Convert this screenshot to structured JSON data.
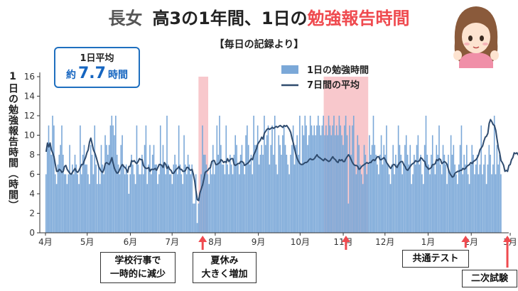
{
  "title": {
    "part_a": "長女",
    "part_b": "高3の1年間、1日の",
    "part_c": "勉強報告時間"
  },
  "subtitle": "【毎日の記録より】",
  "average_box": {
    "label": "1日平均",
    "prefix": "約",
    "value": "7.7",
    "unit": "時間"
  },
  "ylabel": "1日の勉強報告時間（時間）",
  "legend": {
    "bar": "1日の勉強時間",
    "line": "7日間の平均"
  },
  "annotations": [
    {
      "line1": "学校行事で",
      "line2": "一時的に減少"
    },
    {
      "line1": "夏休み",
      "line2": "大きく増加"
    },
    {
      "line1": "共通テスト",
      "line2": ""
    },
    {
      "line1": "二次試験",
      "line2": ""
    }
  ],
  "colors": {
    "bar": "#7ba8d8",
    "line": "#2f4b6e",
    "highlight": "#f8c8cc",
    "arrow": "#ef4a4f",
    "title_accent": "#ef4a4f",
    "avg_value": "#1565c0"
  },
  "avatar": {
    "icon": "girl-avatar-icon"
  },
  "chart_data": {
    "type": "bar",
    "series_names": {
      "bars": "1日の勉強時間",
      "line": "7日間の平均"
    },
    "x_tick_labels": [
      "4月",
      "5月",
      "6月",
      "7月",
      "8月",
      "9月",
      "10月",
      "11月",
      "12月",
      "1月",
      "2月",
      "3月"
    ],
    "y_ticks": [
      0,
      2,
      4,
      6,
      8,
      10,
      12,
      14,
      16
    ],
    "ylim": [
      0,
      16
    ],
    "x_range_days": [
      0,
      335
    ],
    "highlight_ranges_days": [
      [
        112,
        119
      ],
      [
        202,
        234
      ]
    ],
    "bar_values": [
      6,
      9,
      11,
      9,
      8,
      12,
      11,
      6,
      5,
      7,
      8,
      9,
      11,
      8,
      6,
      6,
      5,
      6,
      9,
      6,
      7,
      6,
      8,
      7,
      6,
      5,
      11,
      6,
      8,
      9,
      7,
      7,
      6,
      5,
      9,
      8,
      6,
      11,
      7,
      5,
      7,
      5,
      9,
      7,
      6,
      10,
      9,
      8,
      9,
      11,
      12,
      11,
      10,
      12,
      8,
      7,
      6,
      9,
      10,
      7,
      6,
      7,
      6,
      4,
      6,
      8,
      7,
      6,
      5,
      11,
      7,
      6,
      6,
      8,
      6,
      9,
      11,
      5,
      7,
      9,
      6,
      8,
      9,
      7,
      7,
      5,
      6,
      11,
      7,
      9,
      7,
      6,
      12,
      7,
      6,
      6,
      5,
      7,
      8,
      7,
      6,
      11,
      7,
      6,
      5,
      10,
      7,
      6,
      8,
      7,
      6,
      7,
      3,
      3,
      6,
      1,
      3,
      4,
      6,
      11,
      8,
      8,
      7,
      6,
      5,
      7,
      6,
      9,
      6,
      7,
      11,
      8,
      12,
      9,
      7,
      7,
      6,
      11,
      7,
      6,
      8,
      7,
      6,
      8,
      10,
      9,
      7,
      6,
      8,
      9,
      7,
      6,
      10,
      11,
      9,
      7,
      8,
      6,
      12,
      9,
      9,
      11,
      7,
      8,
      9,
      8,
      12,
      9,
      10,
      11,
      7,
      9,
      11,
      8,
      12,
      7,
      6,
      10,
      9,
      8,
      10,
      11,
      9,
      8,
      7,
      6,
      8,
      9,
      11,
      7,
      9,
      10,
      8,
      12,
      7,
      11,
      10,
      12,
      11,
      9,
      10,
      12,
      11,
      10,
      11,
      10,
      11,
      12,
      11,
      10,
      11,
      12,
      10,
      11,
      10,
      12,
      11,
      10,
      11,
      12,
      10,
      11,
      10,
      12,
      11,
      10,
      9,
      11,
      12,
      10,
      3,
      11,
      8,
      11,
      12,
      7,
      6,
      10,
      9,
      7,
      6,
      5,
      9,
      8,
      6,
      7,
      10,
      8,
      9,
      12,
      9,
      8,
      7,
      6,
      8,
      10,
      7,
      9,
      8,
      11,
      7,
      6,
      5,
      7,
      9,
      6,
      8,
      7,
      11,
      9,
      8,
      6,
      7,
      9,
      10,
      8,
      7,
      9,
      5,
      6,
      8,
      7,
      9,
      10,
      7,
      8,
      6,
      5,
      9,
      12,
      8,
      7,
      6,
      8,
      10,
      7,
      6,
      9,
      8,
      11,
      7,
      6,
      9,
      8,
      7,
      5,
      8,
      6,
      10,
      8,
      9,
      7,
      6,
      5,
      7,
      9,
      11,
      6,
      8,
      7,
      9,
      6,
      5,
      7,
      9,
      8,
      6,
      7,
      8,
      6,
      7,
      11,
      6,
      7,
      8,
      5,
      7,
      9,
      8,
      6,
      7,
      12,
      6,
      9,
      7,
      8,
      6
    ],
    "line_values": [
      8.3,
      9.2,
      8.8,
      9.2,
      8.5,
      8.2,
      7.8,
      7,
      6.3,
      6.3,
      6.5,
      6.4,
      6.2,
      6.3,
      6.8,
      6.9,
      6.5,
      6.3,
      6.1,
      6,
      6.2,
      6.4,
      6.6,
      6.3,
      6.2,
      6.4,
      6.7,
      7,
      7,
      7.4,
      7.7,
      8.2,
      8.5,
      9.3,
      9.7,
      9.1,
      8.5,
      8.2,
      7.8,
      7.3,
      6.8,
      6.5,
      6.3,
      6.2,
      6.5,
      7.1,
      7.2,
      7.1,
      7,
      7.3,
      7.7,
      7.1,
      6.6,
      6.3,
      6.1,
      6.2,
      6.5,
      6.8,
      7,
      6.8,
      6.7,
      6.5,
      6.2,
      6.8,
      6.8,
      7.4,
      7.3,
      7.4,
      7.2,
      7.1,
      7.3,
      7.6,
      7.5,
      7.5,
      6.9,
      6.7,
      6.6,
      6.6,
      6.7,
      6.3,
      6.5,
      6.5,
      6.5,
      6.6,
      6.4,
      6.7,
      7,
      7,
      6.9,
      6.7,
      7.2,
      7,
      6.6,
      6.8,
      6.5,
      6.4,
      6.1,
      6.1,
      6.3,
      6.5,
      6.6,
      6.8,
      6.5,
      6.5,
      6.3,
      6.3,
      6.4,
      6.7,
      6.7,
      6.5,
      6.4,
      6.5,
      6,
      5.3,
      4.3,
      3.4,
      3.3,
      4.1,
      4.5,
      4.9,
      5.5,
      6.2,
      6.3,
      6.4,
      6.6,
      6.7,
      7.3,
      7.4,
      7.4,
      7,
      7,
      7.1,
      7.2,
      7.5,
      7.4,
      7.2,
      7.3,
      7.2,
      7.6,
      7.3,
      7.5,
      7.6,
      7.6,
      7,
      6.9,
      7,
      7.1,
      7.1,
      7.3,
      7.3,
      7.2,
      6.9,
      7,
      7.1,
      7.2,
      7.4,
      7.6,
      7.5,
      8,
      8.3,
      8.6,
      9.1,
      9.3,
      9.5,
      9.8,
      9.6,
      10.2,
      10.4,
      10.6,
      10.7,
      10.6,
      10.7,
      10.8,
      10.7,
      10.8,
      10.9,
      10.8,
      10.9,
      11,
      10.9,
      10.8,
      11,
      10.9,
      11,
      10.8,
      10.6,
      10.3,
      9.7,
      9.2,
      8.6,
      8,
      7.6,
      7.3,
      7.1,
      7,
      7,
      7.1,
      7.2,
      7.2,
      7.3,
      7.5,
      7.6,
      7.5,
      7.5,
      7.6,
      7.8,
      8,
      7.8,
      7.7,
      7.6,
      7.5,
      7.4,
      7.6,
      7.5,
      7.4,
      7.3,
      7.4,
      7.6,
      7.8,
      7.6,
      7.5,
      7.3,
      7.2,
      7.5,
      7.4,
      7.5,
      7.3,
      7.3,
      7.6,
      7.8,
      8,
      7.8,
      7.5,
      7.2,
      7,
      6.9,
      6.9,
      6.8,
      6.5,
      6.6,
      6.8,
      6.9,
      7,
      7.1,
      7.2,
      7.1,
      7.2,
      7.2,
      7.4,
      7.5,
      7.4,
      7.6,
      7.8,
      7.8,
      7.5,
      7.5,
      7.6,
      7.7,
      7.5,
      7.2,
      7,
      6.8,
      6.6,
      6.8,
      7,
      7,
      6.8,
      6.7,
      7,
      7.2,
      7.3,
      7.3,
      7,
      6.8,
      6.5,
      6.4,
      6.6,
      6.8,
      7,
      7.1,
      7.2,
      7.4,
      7.3,
      7.3,
      7.4,
      7.7,
      7.6,
      7.4,
      7.3,
      6.8,
      6.7,
      6.5,
      6.6,
      6.7,
      7,
      7,
      7.1,
      7.5,
      7.4,
      7.6,
      7.5,
      7.1,
      7.2,
      7.3,
      7.2,
      7,
      6.5,
      6.1,
      5.9,
      5.7,
      5.8,
      6.1,
      6.2,
      6.3,
      6.3,
      6.4,
      6.4,
      6.6,
      6.5,
      6.6,
      6.8,
      6.9,
      7,
      7.2,
      7.1,
      7.3,
      7.4,
      7.5,
      7.7,
      8,
      8.5,
      8.7,
      8.9,
      9.4,
      9.8,
      9.9,
      10.2,
      11.2,
      11.6,
      11.4,
      11.1,
      11,
      10.5,
      9.6,
      8.7,
      8.2,
      7.4,
      7.2,
      6.9,
      6.3,
      6.4,
      6.3,
      6.9,
      7,
      7.5,
      7.7,
      8.2,
      8.1,
      8.2,
      8,
      8.5,
      8.2,
      8.1,
      8.3,
      8,
      8.1,
      8.3,
      8,
      8.4,
      8.7,
      8.9,
      9.4,
      10.4,
      10.8,
      10.5,
      10.4,
      10.5,
      10.3,
      10.4,
      10.2,
      10.4,
      10.9,
      11.1,
      11,
      10.4,
      9.8,
      9.5,
      9.3,
      9,
      8.8
    ]
  }
}
